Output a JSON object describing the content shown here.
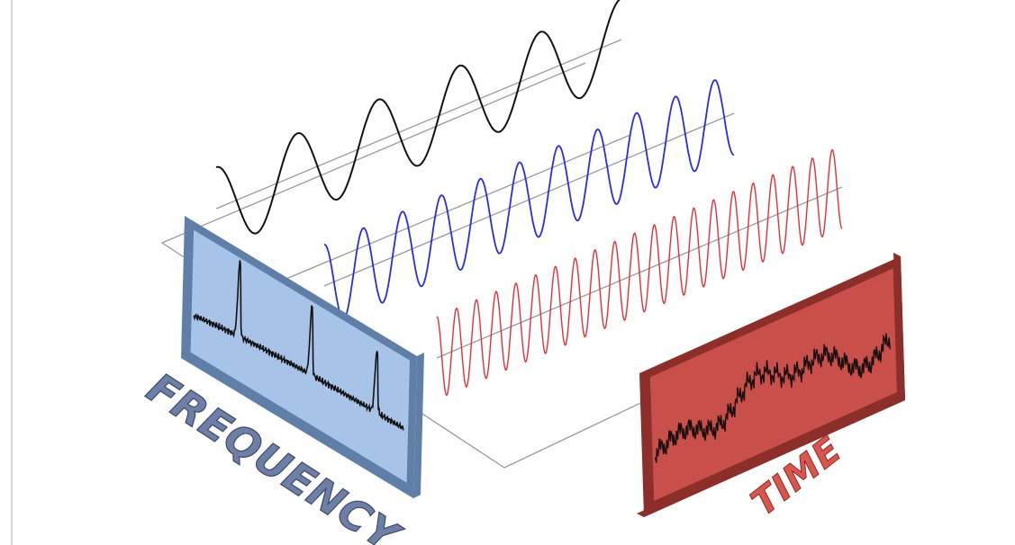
{
  "labels": {
    "frequency": "FREQUENCY",
    "time": "TIME"
  }
}
